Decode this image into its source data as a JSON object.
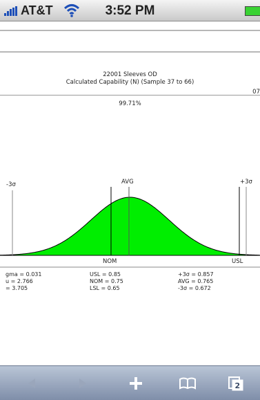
{
  "status_bar": {
    "carrier": "AT&T",
    "time": "3:52 PM",
    "battery_color": "#39d233"
  },
  "report": {
    "title": "22001 Sleeves OD",
    "subtitle": "Calculated Capability (N) (Sample 37 to 66)",
    "edge_label": "07",
    "percent": "99.71%"
  },
  "chart_data": {
    "type": "area",
    "description_labels": {
      "minus3": "-3σ",
      "avg": "AVG",
      "plus3": "+3σ",
      "nom": "NOM",
      "usl": "USL"
    },
    "fill_color": "#00ee00",
    "mean": 0.765,
    "sigma": 0.031,
    "nominal": 0.75,
    "usl": 0.85,
    "minus_3_sigma": 0.672,
    "plus_3_sigma": 0.857
  },
  "stats": {
    "col1": [
      "gma = 0.031",
      "u = 2.766",
      "= 3.705"
    ],
    "col2": [
      "USL = 0.85",
      "NOM = 0.75",
      "LSL = 0.65"
    ],
    "col3": [
      "+3σ = 0.857",
      "AVG = 0.765",
      "-3σ = 0.672"
    ]
  },
  "toolbar": {
    "icons": [
      "back-arrow-icon",
      "forward-arrow-icon",
      "add-icon",
      "bookmarks-icon",
      "pages-icon"
    ],
    "pages_count": "2"
  }
}
